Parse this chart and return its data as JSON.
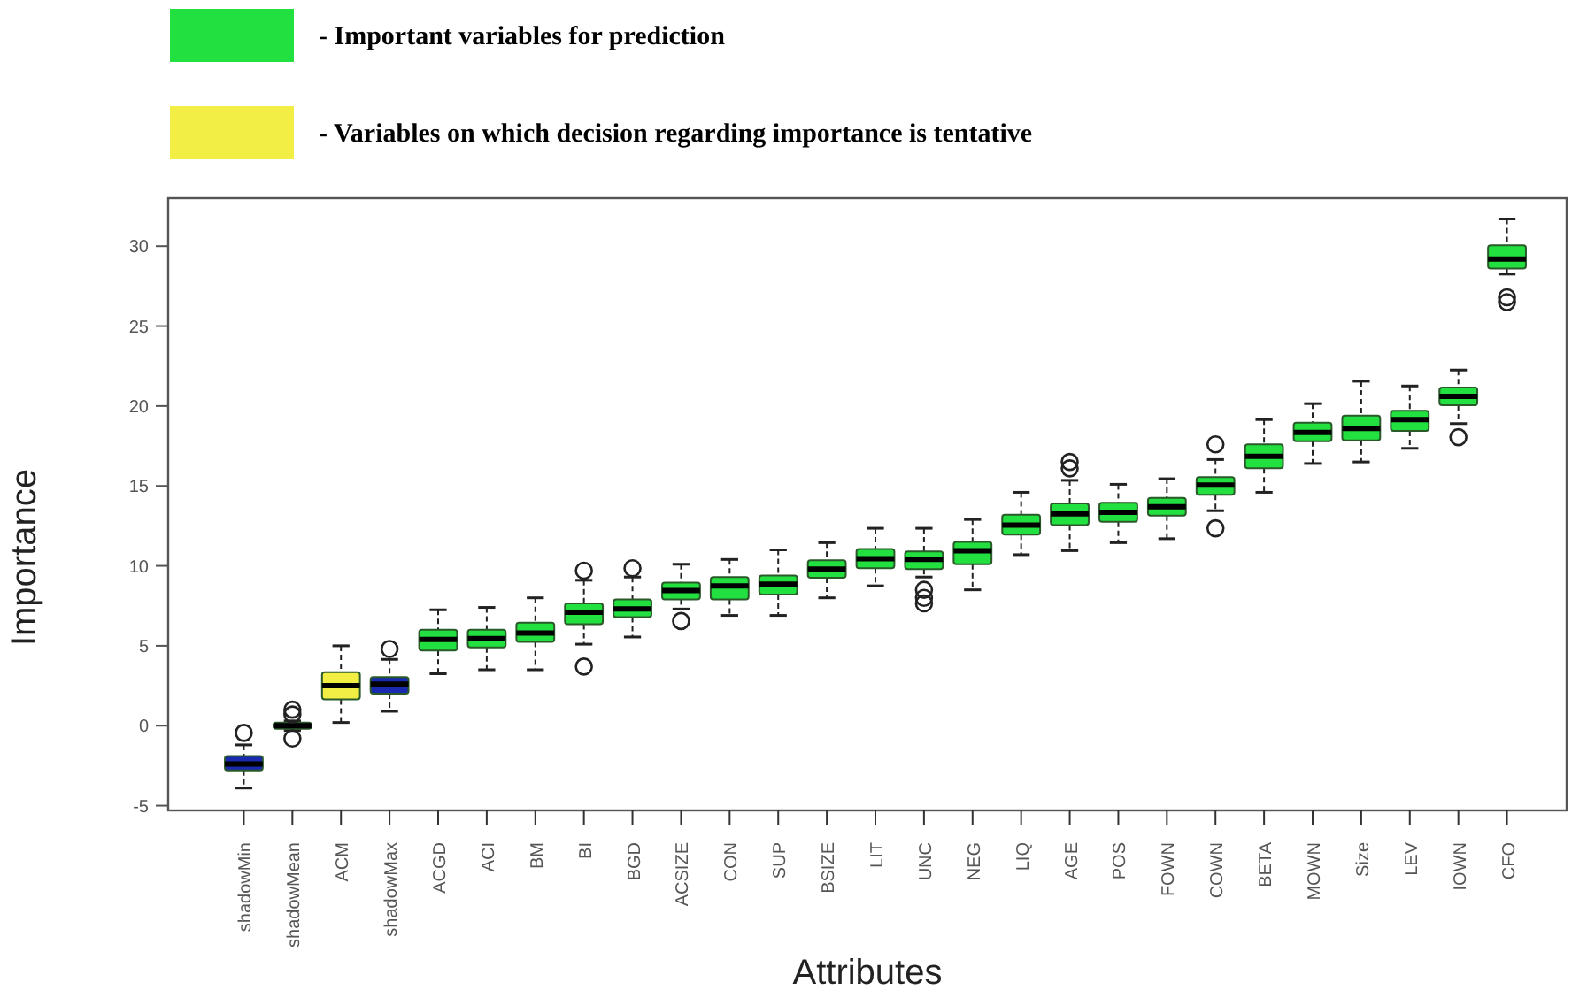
{
  "chart_data": {
    "type": "box",
    "xlabel": "Attributes",
    "ylabel": "Importance",
    "categories": [
      "shadowMin",
      "shadowMean",
      "ACM",
      "shadowMax",
      "ACGD",
      "ACI",
      "BM",
      "BI",
      "BGD",
      "ACSIZE",
      "CON",
      "SUP",
      "BSIZE",
      "LIT",
      "UNC",
      "NEG",
      "LIQ",
      "AGE",
      "POS",
      "FOWN",
      "COWN",
      "BETA",
      "MOWN",
      "Size",
      "LEV",
      "IOWN",
      "CFO"
    ],
    "ylim": [
      -5.3,
      33
    ],
    "yticks": [
      -5,
      0,
      5,
      10,
      15,
      20,
      25,
      30
    ],
    "legend": "top left",
    "grid": false,
    "series": [
      {
        "name": "- Important variables for prediction",
        "color": "#22e040",
        "boxes": [
          null,
          null,
          null,
          null,
          {
            "low": 3.25,
            "q1": 4.7,
            "median": 5.4,
            "q3": 6.0,
            "high": 7.25
          },
          {
            "low": 3.5,
            "q1": 4.9,
            "median": 5.45,
            "q3": 6.0,
            "high": 7.4
          },
          {
            "low": 3.5,
            "q1": 5.25,
            "median": 5.8,
            "q3": 6.45,
            "high": 8.0
          },
          {
            "low": 5.1,
            "q1": 6.35,
            "median": 7.1,
            "q3": 7.65,
            "high": 9.1,
            "outliers": [
              9.7,
              3.7
            ]
          },
          {
            "low": 5.55,
            "q1": 6.8,
            "median": 7.3,
            "q3": 7.9,
            "high": 9.3,
            "outliers": [
              9.85
            ]
          },
          {
            "low": 7.3,
            "q1": 7.9,
            "median": 8.45,
            "q3": 8.95,
            "high": 10.1,
            "outliers": [
              6.55
            ]
          },
          {
            "low": 6.9,
            "q1": 7.9,
            "median": 8.75,
            "q3": 9.3,
            "high": 10.4
          },
          {
            "low": 6.9,
            "q1": 8.2,
            "median": 8.85,
            "q3": 9.4,
            "high": 11.0
          },
          {
            "low": 8.0,
            "q1": 9.25,
            "median": 9.8,
            "q3": 10.35,
            "high": 11.45
          },
          {
            "low": 8.75,
            "q1": 9.85,
            "median": 10.45,
            "q3": 11.05,
            "high": 12.35
          },
          {
            "low": 9.3,
            "q1": 9.8,
            "median": 10.4,
            "q3": 10.9,
            "high": 12.35,
            "outliers": [
              8.5,
              8.0,
              7.65
            ]
          },
          {
            "low": 8.5,
            "q1": 10.1,
            "median": 10.95,
            "q3": 11.5,
            "high": 12.9
          },
          {
            "low": 10.7,
            "q1": 11.95,
            "median": 12.55,
            "q3": 13.2,
            "high": 14.6
          },
          {
            "low": 10.95,
            "q1": 12.55,
            "median": 13.25,
            "q3": 13.9,
            "high": 15.35,
            "outliers": [
              16.5,
              16.1
            ]
          },
          {
            "low": 11.45,
            "q1": 12.75,
            "median": 13.35,
            "q3": 13.95,
            "high": 15.1
          },
          {
            "low": 11.7,
            "q1": 13.15,
            "median": 13.7,
            "q3": 14.25,
            "high": 15.45
          },
          {
            "low": 13.45,
            "q1": 14.45,
            "median": 15.05,
            "q3": 15.55,
            "high": 16.65,
            "outliers": [
              17.6,
              12.35
            ]
          },
          {
            "low": 14.6,
            "q1": 16.1,
            "median": 16.85,
            "q3": 17.6,
            "high": 19.15
          },
          {
            "low": 16.4,
            "q1": 17.8,
            "median": 18.35,
            "q3": 18.95,
            "high": 20.15
          },
          {
            "low": 16.5,
            "q1": 17.85,
            "median": 18.6,
            "q3": 19.4,
            "high": 21.55
          },
          {
            "low": 17.35,
            "q1": 18.45,
            "median": 19.15,
            "q3": 19.7,
            "high": 21.25
          },
          {
            "low": 18.9,
            "q1": 20.05,
            "median": 20.6,
            "q3": 21.15,
            "high": 22.25,
            "outliers": [
              18.05
            ]
          },
          {
            "low": 28.25,
            "q1": 28.6,
            "median": 29.2,
            "q3": 30.05,
            "high": 31.7,
            "outliers": [
              26.5,
              26.8
            ]
          }
        ]
      },
      {
        "name": "- Variables on which decision regarding importance is tentative",
        "color": "#f2ee44",
        "boxes": [
          null,
          null,
          {
            "low": 0.2,
            "q1": 1.65,
            "median": 2.5,
            "q3": 3.35,
            "high": 5.0
          },
          null,
          null,
          null,
          null,
          null,
          null,
          null,
          null,
          null,
          null,
          null,
          null,
          null,
          null,
          null,
          null,
          null,
          null,
          null,
          null,
          null,
          null,
          null,
          null
        ]
      },
      {
        "color": "#1a2ab0",
        "boxes": [
          {
            "low": -3.9,
            "q1": -2.8,
            "median": -2.4,
            "q3": -1.9,
            "high": -1.2,
            "outliers": [
              -0.45
            ]
          },
          {
            "low": -0.3,
            "q1": -0.2,
            "median": 0,
            "q3": 0.2,
            "high": 0.3,
            "outliers": [
              1.0,
              0.7,
              -0.8
            ]
          },
          null,
          {
            "low": 0.9,
            "q1": 2.0,
            "median": 2.6,
            "q3": 3.05,
            "high": 4.15,
            "outliers": [
              4.8
            ]
          },
          null,
          null,
          null,
          null,
          null,
          null,
          null,
          null,
          null,
          null,
          null,
          null,
          null,
          null,
          null,
          null,
          null,
          null,
          null,
          null,
          null,
          null,
          null
        ]
      }
    ]
  }
}
